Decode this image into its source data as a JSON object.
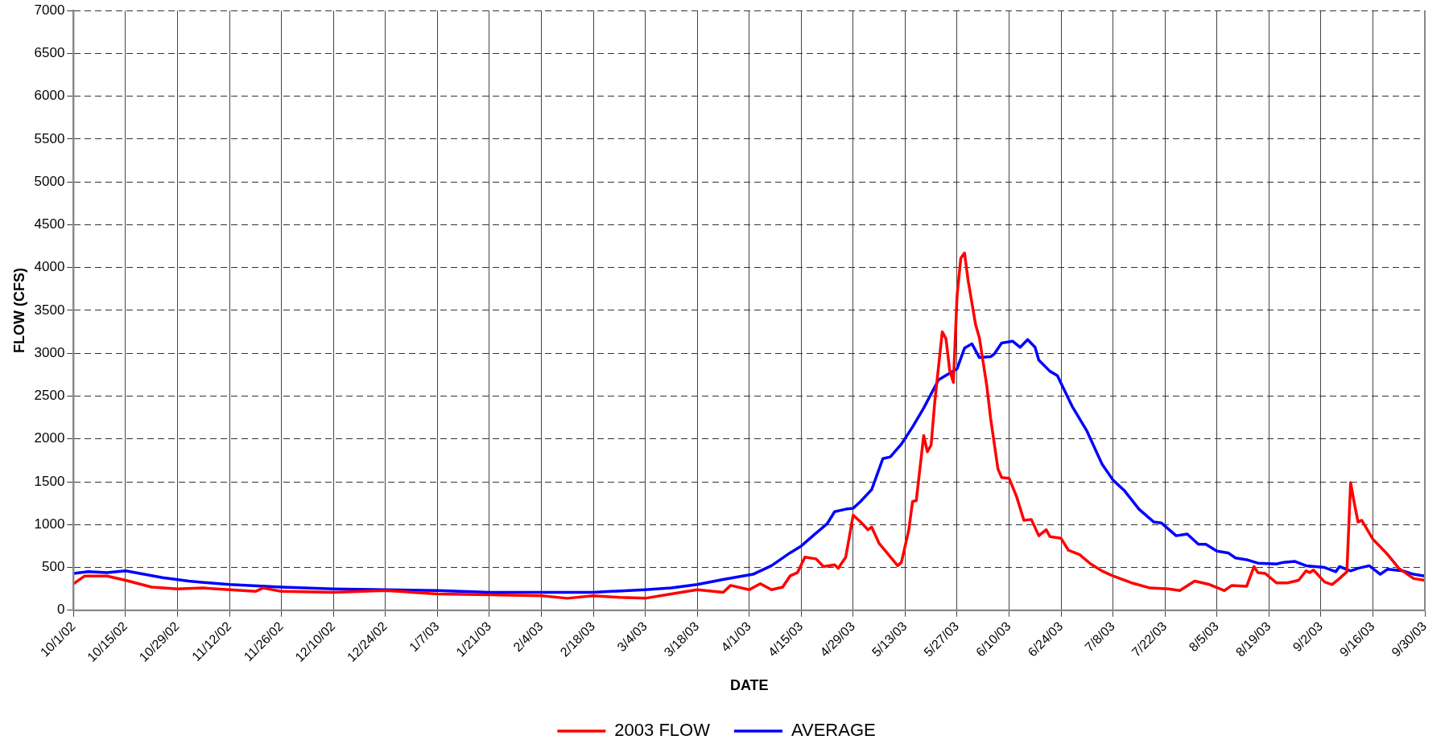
{
  "chart_data": {
    "type": "line",
    "xlabel": "DATE",
    "ylabel": "FLOW (CFS)",
    "xlim": [
      "2002-10-01",
      "2003-09-30"
    ],
    "xticks": [
      {
        "value": "2002-10-01",
        "label": "10/1/02"
      },
      {
        "value": "2002-10-15",
        "label": "10/15/02"
      },
      {
        "value": "2002-10-29",
        "label": "10/29/02"
      },
      {
        "value": "2002-11-12",
        "label": "11/12/02"
      },
      {
        "value": "2002-11-26",
        "label": "11/26/02"
      },
      {
        "value": "2002-12-10",
        "label": "12/10/02"
      },
      {
        "value": "2002-12-24",
        "label": "12/24/02"
      },
      {
        "value": "2003-01-07",
        "label": "1/7/03"
      },
      {
        "value": "2003-01-21",
        "label": "1/21/03"
      },
      {
        "value": "2003-02-04",
        "label": "2/4/03"
      },
      {
        "value": "2003-02-18",
        "label": "2/18/03"
      },
      {
        "value": "2003-03-04",
        "label": "3/4/03"
      },
      {
        "value": "2003-03-18",
        "label": "3/18/03"
      },
      {
        "value": "2003-04-01",
        "label": "4/1/03"
      },
      {
        "value": "2003-04-15",
        "label": "4/15/03"
      },
      {
        "value": "2003-04-29",
        "label": "4/29/03"
      },
      {
        "value": "2003-05-13",
        "label": "5/13/03"
      },
      {
        "value": "2003-05-27",
        "label": "5/27/03"
      },
      {
        "value": "2003-06-10",
        "label": "6/10/03"
      },
      {
        "value": "2003-06-24",
        "label": "6/24/03"
      },
      {
        "value": "2003-07-08",
        "label": "7/8/03"
      },
      {
        "value": "2003-07-22",
        "label": "7/22/03"
      },
      {
        "value": "2003-08-05",
        "label": "8/5/03"
      },
      {
        "value": "2003-08-19",
        "label": "8/19/03"
      },
      {
        "value": "2003-09-02",
        "label": "9/2/03"
      },
      {
        "value": "2003-09-16",
        "label": "9/16/03"
      },
      {
        "value": "2003-09-30",
        "label": "9/30/03"
      }
    ],
    "ylim": [
      0,
      7000
    ],
    "yticks": [
      0,
      500,
      1000,
      1500,
      2000,
      2500,
      3000,
      3500,
      4000,
      4500,
      5000,
      5500,
      6000,
      6500,
      7000
    ],
    "grid": true,
    "legend": "bottom",
    "marker": "none",
    "line_style": "solid",
    "series": [
      {
        "name": "2003 FLOW",
        "color": "#ff0000",
        "x": [
          "2002-10-01",
          "2002-10-04",
          "2002-10-10",
          "2002-10-15",
          "2002-10-22",
          "2002-10-29",
          "2002-11-05",
          "2002-11-12",
          "2002-11-19",
          "2002-11-21",
          "2002-11-26",
          "2002-12-10",
          "2002-12-24",
          "2003-01-07",
          "2003-01-21",
          "2003-02-04",
          "2003-02-11",
          "2003-02-18",
          "2003-02-25",
          "2003-03-04",
          "2003-03-11",
          "2003-03-18",
          "2003-03-25",
          "2003-03-27",
          "2003-04-01",
          "2003-04-04",
          "2003-04-07",
          "2003-04-10",
          "2003-04-12",
          "2003-04-14",
          "2003-04-16",
          "2003-04-19",
          "2003-04-21",
          "2003-04-24",
          "2003-04-25",
          "2003-04-27",
          "2003-04-29",
          "2003-05-01",
          "2003-05-03",
          "2003-05-04",
          "2003-05-06",
          "2003-05-11",
          "2003-05-12",
          "2003-05-14",
          "2003-05-15",
          "2003-05-16",
          "2003-05-18",
          "2003-05-19",
          "2003-05-20",
          "2003-05-21",
          "2003-05-23",
          "2003-05-24",
          "2003-05-25",
          "2003-05-26",
          "2003-05-27",
          "2003-05-28",
          "2003-05-29",
          "2003-05-30",
          "2003-06-01",
          "2003-06-02",
          "2003-06-04",
          "2003-06-05",
          "2003-06-07",
          "2003-06-08",
          "2003-06-10",
          "2003-06-12",
          "2003-06-14",
          "2003-06-16",
          "2003-06-18",
          "2003-06-20",
          "2003-06-21",
          "2003-06-24",
          "2003-06-26",
          "2003-06-29",
          "2003-07-02",
          "2003-07-05",
          "2003-07-08",
          "2003-07-13",
          "2003-07-18",
          "2003-07-23",
          "2003-07-26",
          "2003-07-30",
          "2003-08-03",
          "2003-08-07",
          "2003-08-09",
          "2003-08-13",
          "2003-08-15",
          "2003-08-16",
          "2003-08-18",
          "2003-08-21",
          "2003-08-24",
          "2003-08-27",
          "2003-08-29",
          "2003-08-30",
          "2003-08-31",
          "2003-09-03",
          "2003-09-05",
          "2003-09-07",
          "2003-09-09",
          "2003-09-10",
          "2003-09-11",
          "2003-09-12",
          "2003-09-13",
          "2003-09-16",
          "2003-09-20",
          "2003-09-23",
          "2003-09-27",
          "2003-09-30"
        ],
        "values": [
          310,
          400,
          400,
          350,
          270,
          250,
          260,
          240,
          220,
          260,
          220,
          210,
          230,
          190,
          180,
          170,
          140,
          170,
          150,
          140,
          190,
          240,
          210,
          290,
          240,
          310,
          240,
          270,
          400,
          440,
          620,
          600,
          510,
          530,
          490,
          620,
          1110,
          1030,
          940,
          970,
          780,
          520,
          560,
          940,
          1270,
          1280,
          2040,
          1850,
          1930,
          2440,
          3250,
          3170,
          2800,
          2660,
          3680,
          4110,
          4170,
          3840,
          3330,
          3180,
          2620,
          2250,
          1650,
          1550,
          1540,
          1330,
          1050,
          1060,
          870,
          940,
          860,
          840,
          700,
          650,
          540,
          460,
          400,
          320,
          260,
          250,
          230,
          340,
          300,
          230,
          290,
          280,
          510,
          440,
          430,
          320,
          320,
          350,
          460,
          440,
          470,
          330,
          300,
          370,
          450,
          1490,
          1250,
          1030,
          1050,
          830,
          650,
          490,
          370,
          350
        ]
      },
      {
        "name": "AVERAGE",
        "color": "#0000ff",
        "x": [
          "2002-10-01",
          "2002-10-05",
          "2002-10-10",
          "2002-10-15",
          "2002-10-20",
          "2002-10-25",
          "2002-11-01",
          "2002-11-12",
          "2002-11-26",
          "2002-12-10",
          "2002-12-24",
          "2003-01-07",
          "2003-01-21",
          "2003-02-04",
          "2003-02-18",
          "2003-03-04",
          "2003-03-11",
          "2003-03-18",
          "2003-03-25",
          "2003-04-02",
          "2003-04-07",
          "2003-04-12",
          "2003-04-15",
          "2003-04-19",
          "2003-04-22",
          "2003-04-24",
          "2003-04-27",
          "2003-04-29",
          "2003-05-01",
          "2003-05-04",
          "2003-05-07",
          "2003-05-09",
          "2003-05-12",
          "2003-05-15",
          "2003-05-18",
          "2003-05-22",
          "2003-05-27",
          "2003-05-29",
          "2003-05-31",
          "2003-06-02",
          "2003-06-05",
          "2003-06-06",
          "2003-06-08",
          "2003-06-11",
          "2003-06-13",
          "2003-06-15",
          "2003-06-17",
          "2003-06-18",
          "2003-06-21",
          "2003-06-23",
          "2003-06-27",
          "2003-07-01",
          "2003-07-05",
          "2003-07-08",
          "2003-07-11",
          "2003-07-15",
          "2003-07-19",
          "2003-07-21",
          "2003-07-25",
          "2003-07-28",
          "2003-07-31",
          "2003-08-02",
          "2003-08-05",
          "2003-08-08",
          "2003-08-10",
          "2003-08-13",
          "2003-08-16",
          "2003-08-21",
          "2003-08-23",
          "2003-08-26",
          "2003-08-29",
          "2003-09-03",
          "2003-09-06",
          "2003-09-07",
          "2003-09-10",
          "2003-09-12",
          "2003-09-15",
          "2003-09-18",
          "2003-09-20",
          "2003-09-24",
          "2003-09-27",
          "2003-09-30"
        ],
        "values": [
          430,
          450,
          440,
          460,
          420,
          380,
          340,
          300,
          270,
          250,
          240,
          230,
          210,
          210,
          210,
          240,
          260,
          300,
          360,
          420,
          520,
          670,
          750,
          900,
          1010,
          1150,
          1180,
          1190,
          1270,
          1410,
          1770,
          1790,
          1940,
          2140,
          2360,
          2690,
          2820,
          3060,
          3110,
          2950,
          2960,
          2990,
          3120,
          3140,
          3070,
          3160,
          3070,
          2920,
          2790,
          2740,
          2380,
          2090,
          1710,
          1520,
          1400,
          1180,
          1030,
          1020,
          870,
          890,
          770,
          770,
          690,
          670,
          610,
          590,
          550,
          540,
          560,
          570,
          520,
          500,
          450,
          510,
          460,
          490,
          520,
          420,
          480,
          460,
          420,
          400
        ]
      }
    ]
  }
}
